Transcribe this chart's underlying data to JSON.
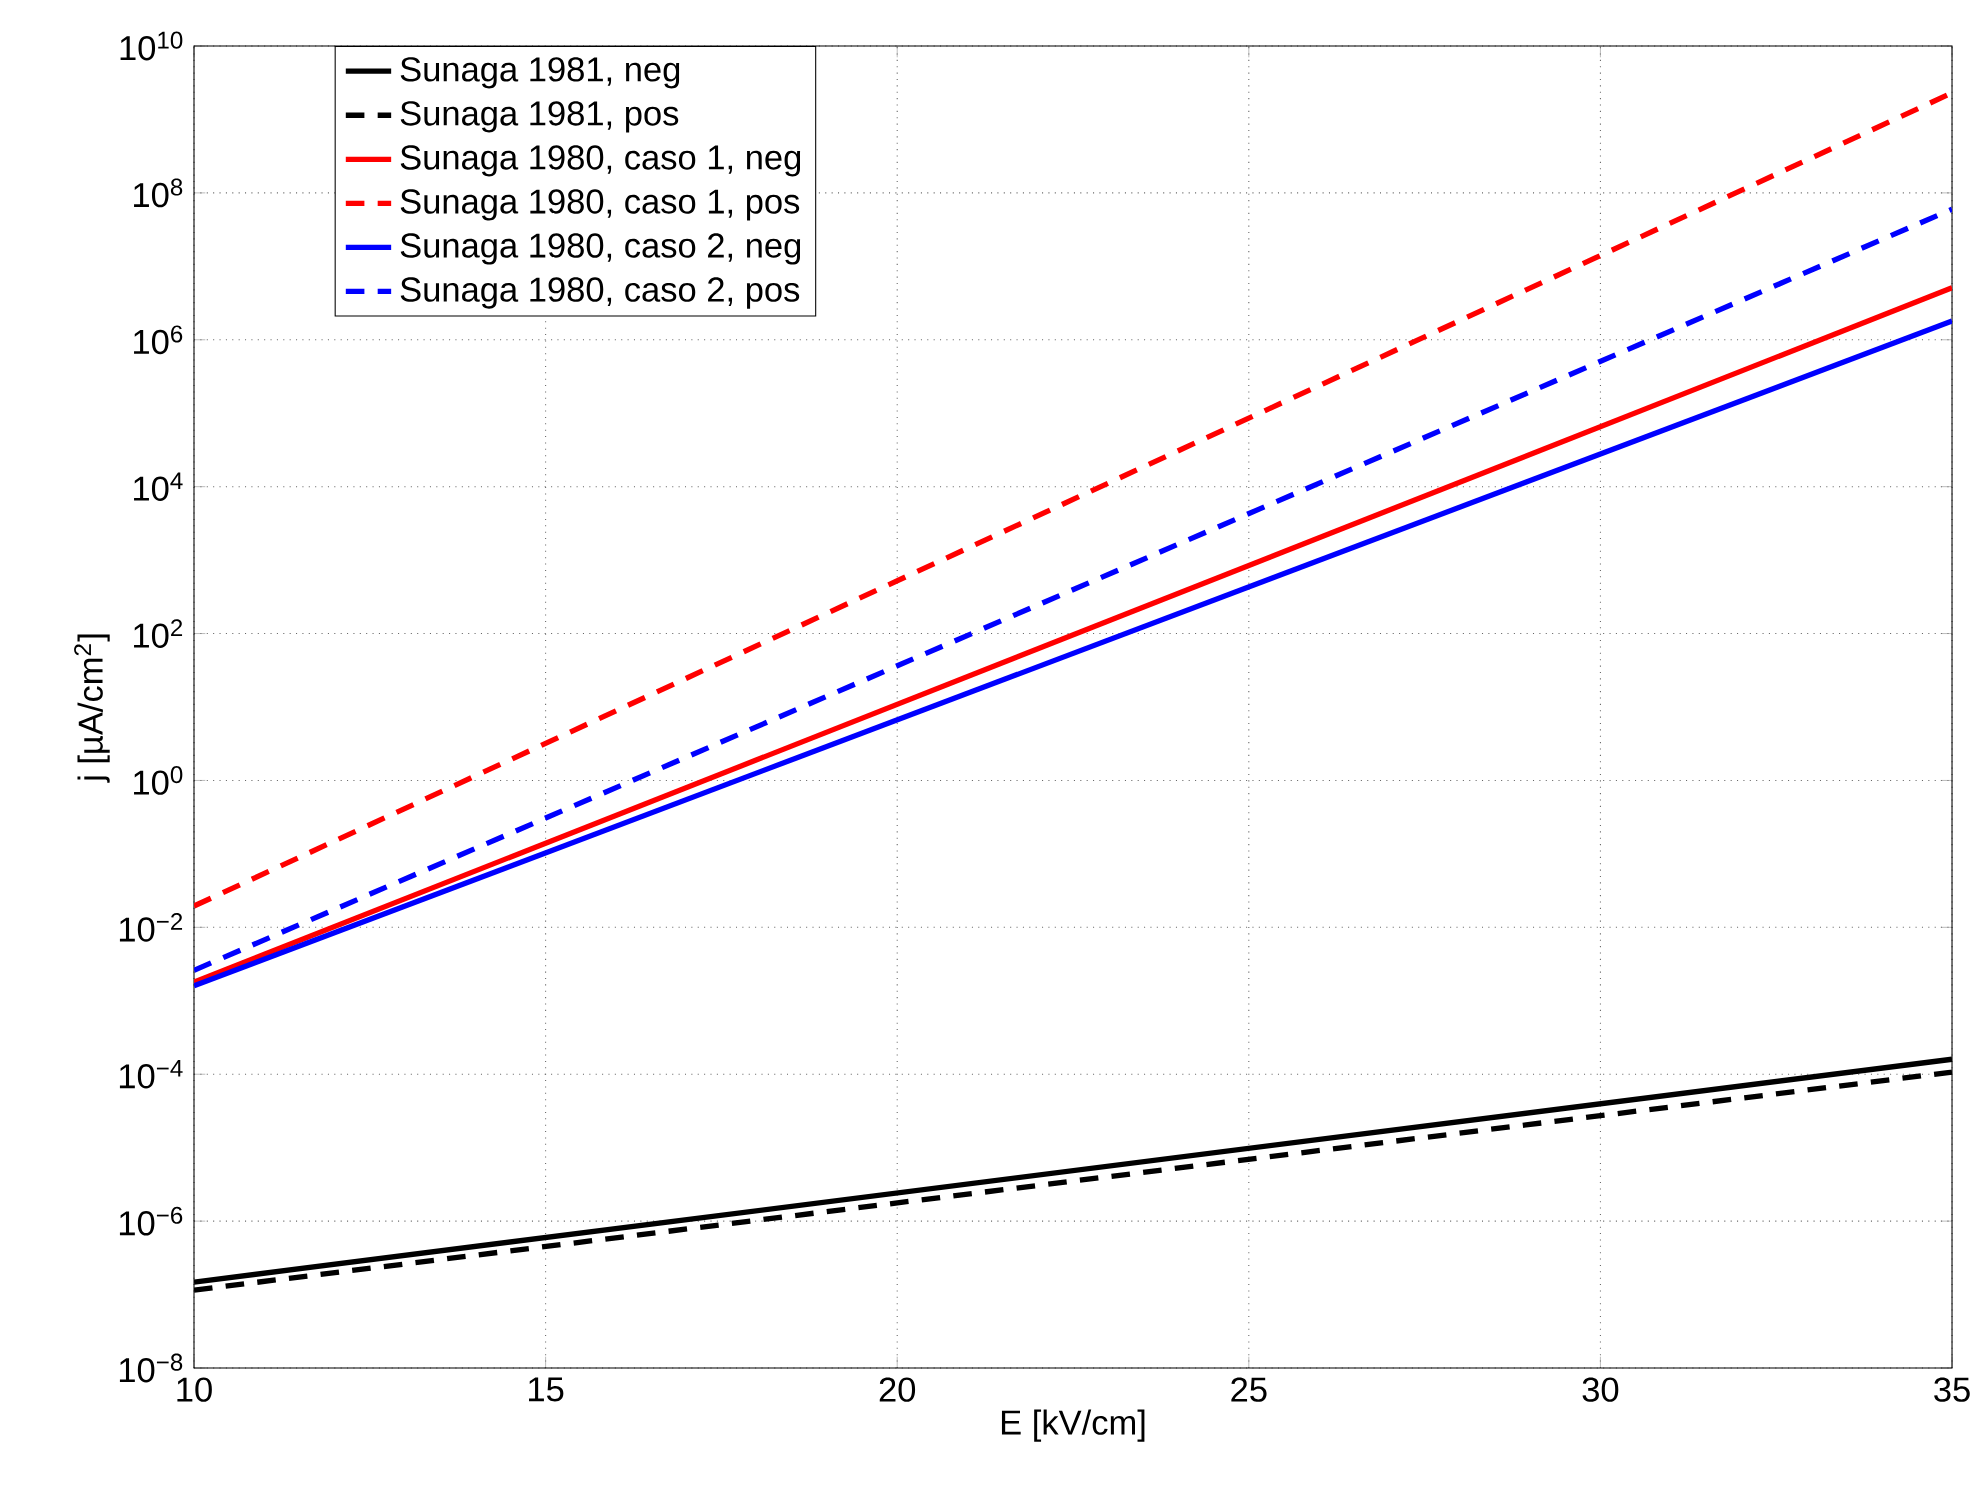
{
  "chart_data": {
    "type": "line",
    "xlabel": "E [kV/cm]",
    "ylabel": "j [µA/cm$^{2}$]",
    "log": "y",
    "grid": true,
    "legend": "top left",
    "marker": "none",
    "xlim": [
      10,
      35
    ],
    "xticks": [
      10,
      15,
      20,
      25,
      30,
      35
    ],
    "ylim": [
      1e-08,
      10000000000.0
    ],
    "yticks": [
      {
        "value": 1e-08,
        "label": "10$^{−8}$"
      },
      {
        "value": 1e-06,
        "label": "10$^{−6}$"
      },
      {
        "value": 0.0001,
        "label": "10$^{−4}$"
      },
      {
        "value": 0.01,
        "label": "10$^{−2}$"
      },
      {
        "value": 1,
        "label": "10$^{0}$"
      },
      {
        "value": 100.0,
        "label": "10$^{2}$"
      },
      {
        "value": 10000.0,
        "label": "10$^{4}$"
      },
      {
        "value": 1000000.0,
        "label": "10$^{6}$"
      },
      {
        "value": 100000000.0,
        "label": "10$^{8}$"
      },
      {
        "value": 10000000000.0,
        "label": "10$^{10}$"
      }
    ],
    "x": [
      10,
      35
    ],
    "series": [
      {
        "name": "Sunaga 1981, neg",
        "color": "#000000",
        "line_style": "solid",
        "values": [
          1.48e-07,
          0.00016
        ]
      },
      {
        "name": "Sunaga 1981, pos",
        "color": "#000000",
        "line_style": "dashed",
        "values": [
          1.15e-07,
          0.000107
        ]
      },
      {
        "name": "Sunaga 1980, caso 1, neg",
        "color": "#ff0000",
        "line_style": "solid",
        "values": [
          0.0018,
          5100000.0
        ]
      },
      {
        "name": "Sunaga 1980, caso 1, pos",
        "color": "#ff0000",
        "line_style": "dashed",
        "values": [
          0.0195,
          2300000000.0
        ]
      },
      {
        "name": "Sunaga 1980, caso 2, neg",
        "color": "#0000ff",
        "line_style": "solid",
        "values": [
          0.0016,
          1800000.0
        ]
      },
      {
        "name": "Sunaga 1980, caso 2, pos",
        "color": "#0000ff",
        "line_style": "dashed",
        "values": [
          0.0026,
          60000000.0
        ]
      }
    ]
  }
}
